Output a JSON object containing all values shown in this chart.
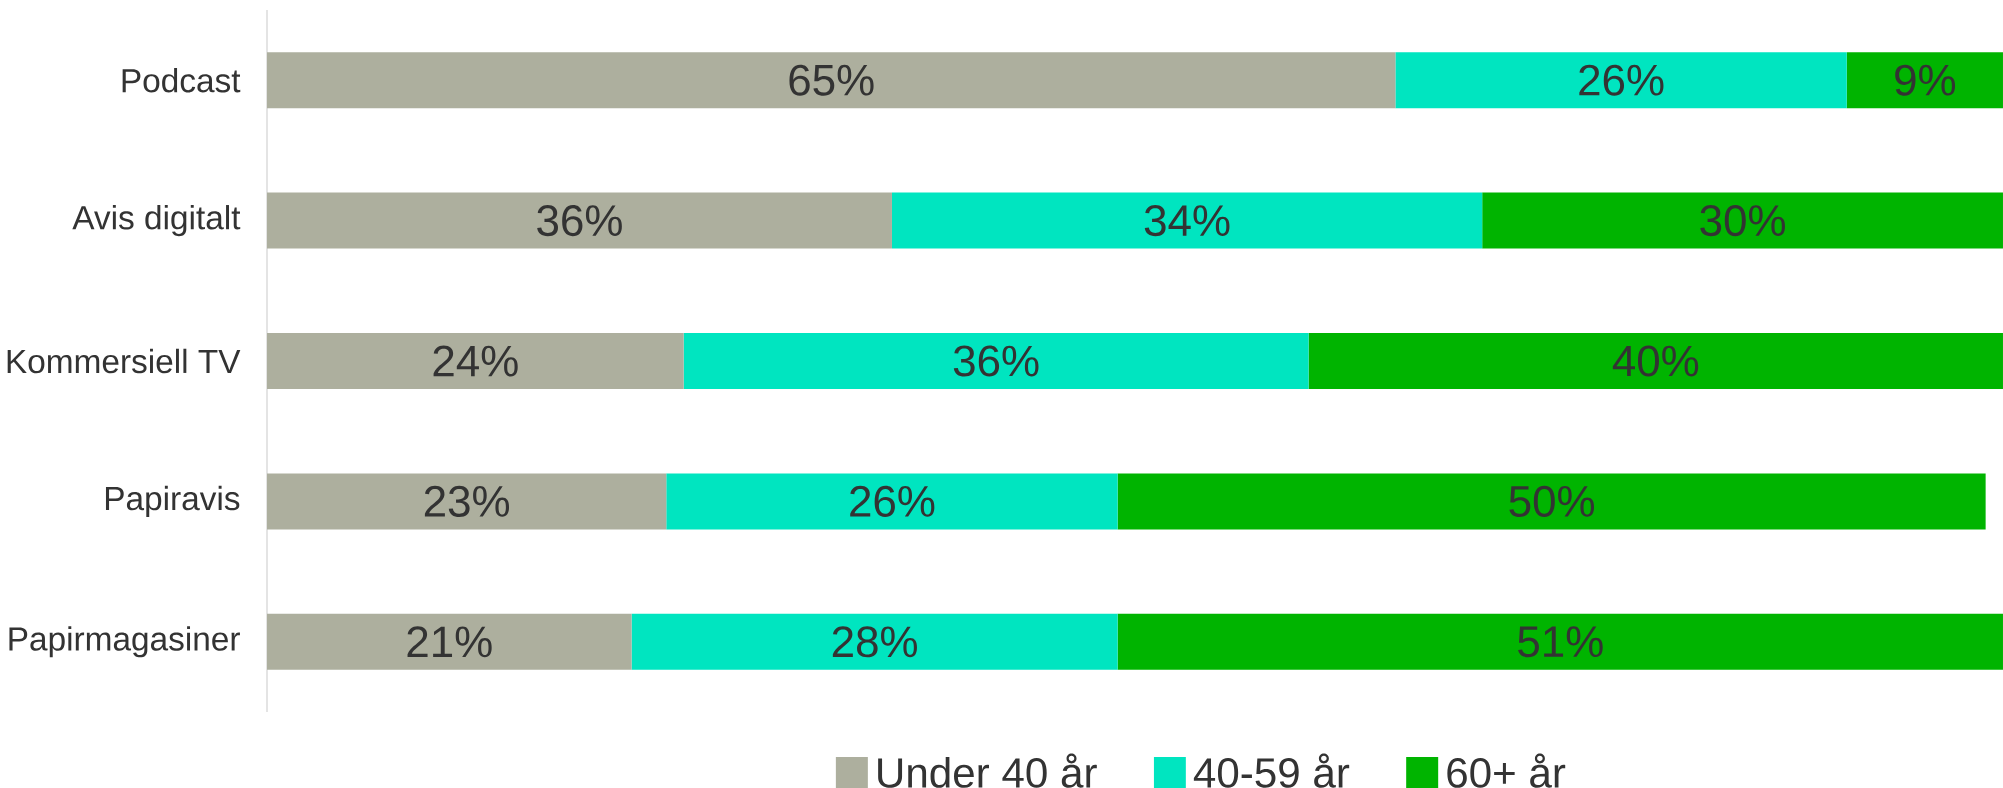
{
  "chart_data": {
    "type": "bar",
    "orientation": "horizontal",
    "stacked": true,
    "categories": [
      "Podcast",
      "Avis digitalt",
      "Kommersiell TV",
      "Papiravis",
      "Papirmagasiner"
    ],
    "series": [
      {
        "name": "Under 40 år",
        "color": "#adaf9e",
        "values": [
          65,
          36,
          24,
          23,
          21
        ],
        "value_labels": [
          "65%",
          "36%",
          "24%",
          "23%",
          "21%"
        ]
      },
      {
        "name": "40-59 år",
        "color": "#00e5c0",
        "values": [
          26,
          34,
          36,
          26,
          28
        ],
        "value_labels": [
          "26%",
          "34%",
          "36%",
          "26%",
          "28%"
        ]
      },
      {
        "name": "60+ år",
        "color": "#00b400",
        "values": [
          9,
          30,
          40,
          50,
          51
        ],
        "value_labels": [
          "9%",
          "30%",
          "40%",
          "50%",
          "51%"
        ]
      }
    ],
    "xlim": [
      0,
      100
    ],
    "tick_labels": "y",
    "legend": "bottom"
  }
}
